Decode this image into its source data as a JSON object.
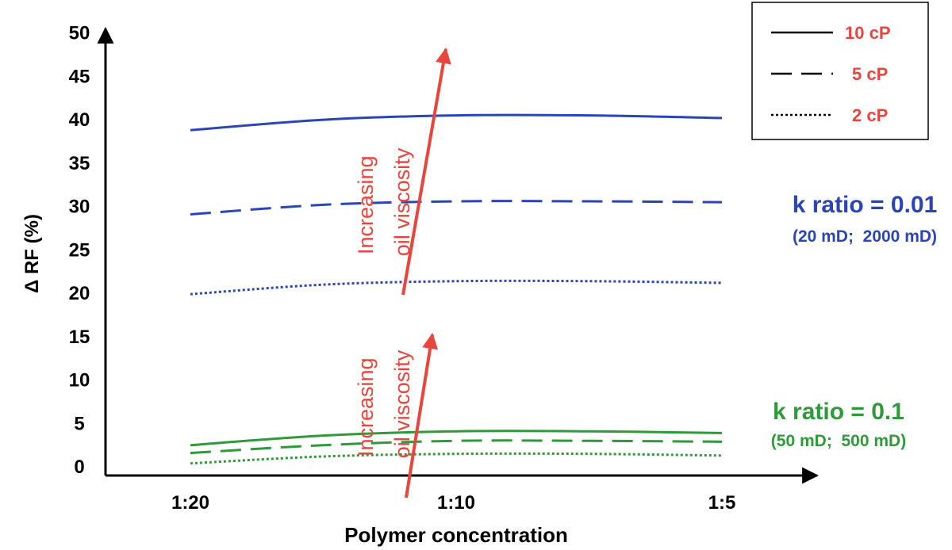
{
  "chart_data": {
    "type": "line",
    "xlabel": "Polymer concentration",
    "ylabel": "Δ RF (%)",
    "categories": [
      "1:20",
      "1:10",
      "1:5"
    ],
    "ylim": [
      0,
      50
    ],
    "yticks": [
      0,
      5,
      10,
      15,
      20,
      25,
      30,
      35,
      40,
      45,
      50
    ],
    "grid": false,
    "legend": {
      "placement": "top-right",
      "entries": [
        {
          "label": "10 cP",
          "style": "solid"
        },
        {
          "label": "5 cP",
          "style": "dashed"
        },
        {
          "label": "2 cP",
          "style": "dotted"
        }
      ]
    },
    "groups": [
      {
        "label": "k ratio = 0.01",
        "sublabel": "(20 mD;  2000 mD)",
        "color": "#2b45b8",
        "series": [
          {
            "name": "10 cP",
            "style": "solid",
            "x": [
              1,
              1.5,
              2,
              2.5,
              3
            ],
            "y": [
              38.7,
              39.9,
              40.4,
              40.4,
              40.1
            ]
          },
          {
            "name": "5 cP",
            "style": "dashed",
            "x": [
              1,
              1.5,
              2,
              2.5,
              3
            ],
            "y": [
              29.0,
              30.1,
              30.5,
              30.5,
              30.4
            ]
          },
          {
            "name": "2 cP",
            "style": "dotted",
            "x": [
              1,
              1.5,
              2,
              2.5,
              3
            ],
            "y": [
              19.8,
              20.9,
              21.3,
              21.3,
              21.1
            ]
          }
        ]
      },
      {
        "label": "k ratio = 0.1",
        "sublabel": "(50 mD;  500 mD)",
        "color": "#2e9a3a",
        "series": [
          {
            "name": "10 cP",
            "style": "solid",
            "x": [
              1,
              1.5,
              2,
              2.5,
              3
            ],
            "y": [
              2.4,
              3.5,
              4.0,
              4.0,
              3.8
            ]
          },
          {
            "name": "5 cP",
            "style": "dashed",
            "x": [
              1,
              1.5,
              2,
              2.5,
              3
            ],
            "y": [
              1.5,
              2.4,
              2.9,
              2.9,
              2.8
            ]
          },
          {
            "name": "2 cP",
            "style": "dotted",
            "x": [
              1,
              1.5,
              2,
              2.5,
              3
            ],
            "y": [
              0.3,
              1.1,
              1.4,
              1.4,
              1.2
            ]
          }
        ]
      }
    ],
    "annotations": [
      {
        "text": "Increasing\noil viscosity",
        "color": "#e8453c"
      },
      {
        "text": "Increasing\noil viscosity",
        "color": "#e8453c"
      }
    ]
  }
}
